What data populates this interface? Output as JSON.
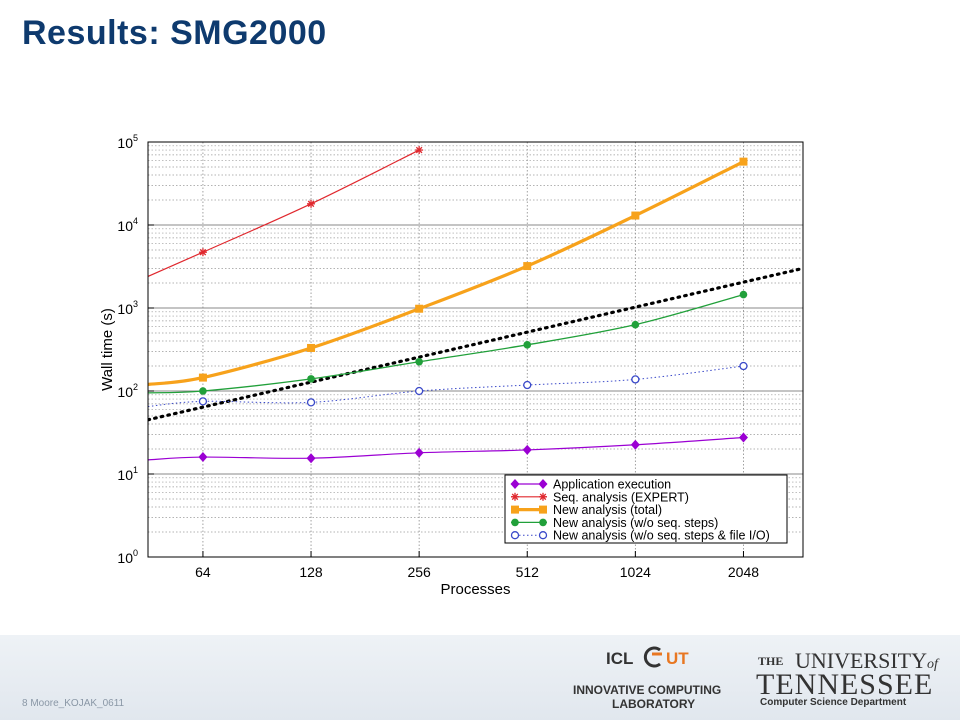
{
  "slide": {
    "title": "Results: SMG2000",
    "footer_note": "8   Moore_KOJAK_0611"
  },
  "logos": {
    "icl_name": "ICL",
    "icl_ut": "UT",
    "icl_line1": "INNOVATIVE COMPUTING",
    "icl_line2": "LABORATORY",
    "ut_the": "THE",
    "ut_university": "UNIVERSITY",
    "ut_of": "of",
    "ut_tennessee": "TENNESSEE",
    "ut_dept": "Computer Science Department"
  },
  "chart_data": {
    "type": "line",
    "xlabel": "Processes",
    "ylabel": "Wall time (s)",
    "xscale": "log2",
    "yscale": "log10",
    "categories": [
      64,
      128,
      256,
      512,
      1024,
      2048
    ],
    "x_ticks": [
      "64",
      "128",
      "256",
      "512",
      "1024",
      "2048"
    ],
    "y_ticks": [
      {
        "base": "10",
        "exp": "0"
      },
      {
        "base": "10",
        "exp": "1"
      },
      {
        "base": "10",
        "exp": "2"
      },
      {
        "base": "10",
        "exp": "3"
      },
      {
        "base": "10",
        "exp": "4"
      },
      {
        "base": "10",
        "exp": "5"
      }
    ],
    "xlim": [
      45,
      3000
    ],
    "ylim": [
      1,
      100000
    ],
    "grid": true,
    "legend_position": "bottom-right",
    "series": [
      {
        "name": "Application execution",
        "color": "#9b00d3",
        "marker": "diamond",
        "dash": "solid",
        "x": [
          64,
          128,
          256,
          512,
          1024,
          2048
        ],
        "y": [
          16,
          15.5,
          18,
          19.5,
          22.5,
          27.5
        ],
        "fit_line": {
          "x": [
            45,
            64
          ],
          "y": [
            14.8,
            16
          ]
        }
      },
      {
        "name": "Seq. analysis (EXPERT)",
        "color": "#e0282e",
        "marker": "star",
        "dash": "solid",
        "x": [
          64,
          128,
          256
        ],
        "y": [
          4700,
          18000,
          80000
        ],
        "fit_line": {
          "x": [
            45,
            64
          ],
          "y": [
            2400,
            4700
          ]
        }
      },
      {
        "name": "New analysis (total)",
        "color": "#f7a21b",
        "marker": "square",
        "dash": "solid",
        "x": [
          64,
          128,
          256,
          512,
          1024,
          2048
        ],
        "y": [
          145,
          330,
          980,
          3200,
          13000,
          58000
        ],
        "fit_line": {
          "x": [
            45,
            64
          ],
          "y": [
            120,
            145
          ]
        }
      },
      {
        "name": "New analysis (w/o seq. steps)",
        "color": "#21a03a",
        "marker": "circle",
        "dash": "solid",
        "x": [
          64,
          128,
          256,
          512,
          1024,
          2048
        ],
        "y": [
          100,
          140,
          225,
          360,
          630,
          1450
        ],
        "fit_line": {
          "x": [
            45,
            64
          ],
          "y": [
            95,
            100
          ]
        }
      },
      {
        "name": "New analysis (w/o seq. steps & file I/O)",
        "color": "#3a49c9",
        "marker": "open-circle",
        "dash": "dotted",
        "x": [
          64,
          128,
          256,
          512,
          1024,
          2048
        ],
        "y": [
          75,
          73,
          100,
          118,
          138,
          200
        ],
        "fit_line": {
          "x": [
            45,
            64
          ],
          "y": [
            65,
            75
          ]
        }
      }
    ],
    "reference_line": {
      "color": "#000000",
      "dash": "dotted",
      "x": [
        45,
        3000
      ],
      "y": [
        45,
        3000
      ]
    }
  }
}
